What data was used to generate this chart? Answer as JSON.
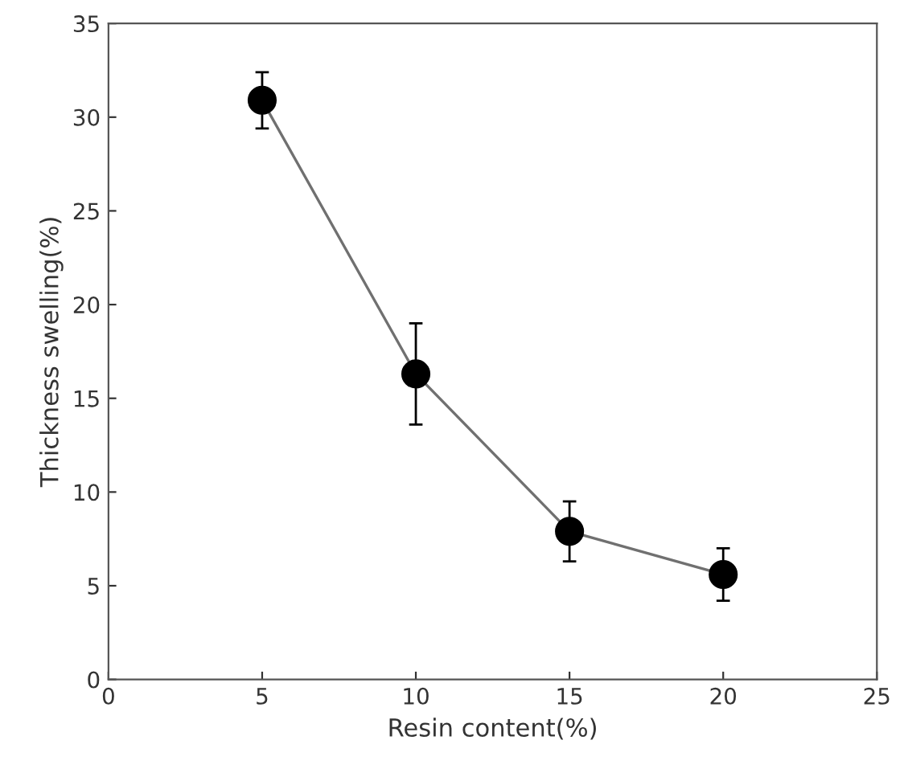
{
  "chart_data": {
    "type": "line",
    "xlabel": "Resin content(%)",
    "ylabel": "Thickness swelling(%)",
    "x": [
      5,
      10,
      15,
      20
    ],
    "series": [
      {
        "color": "#000000",
        "values": [
          30.9,
          16.3,
          7.9,
          5.6
        ],
        "errors": [
          1.5,
          2.7,
          1.6,
          1.4
        ]
      }
    ],
    "marker": "circle",
    "line_style": "solid",
    "grid": false,
    "legend": false,
    "xlim": [
      0,
      25
    ],
    "xticks": [
      0,
      5,
      10,
      15,
      20,
      25
    ],
    "ylim": [
      0,
      35
    ],
    "yticks": [
      0,
      5,
      10,
      15,
      20,
      25,
      30,
      35
    ]
  }
}
